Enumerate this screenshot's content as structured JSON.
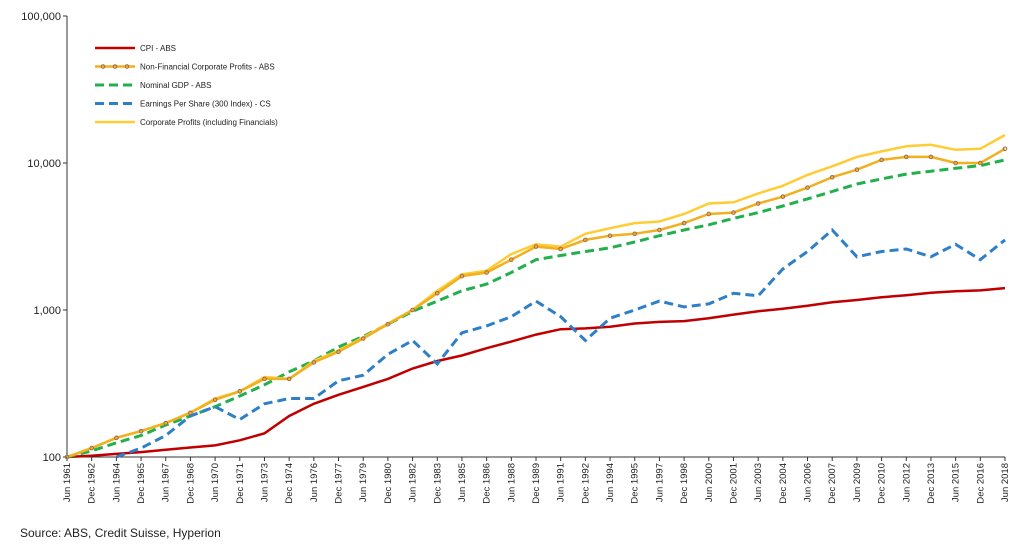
{
  "chart_data": {
    "type": "line",
    "log_scale": true,
    "grid": false,
    "legend_position": "top-left",
    "source": "Source: ABS, Credit Suisse, Hyperion",
    "categories": [
      "Jun 1961",
      "Dec 1962",
      "Jun 1964",
      "Dec 1965",
      "Jun 1967",
      "Dec 1968",
      "Jun 1970",
      "Dec 1971",
      "Jun 1973",
      "Dec 1974",
      "Jun 1976",
      "Dec 1977",
      "Jun 1979",
      "Dec 1980",
      "Jun 1982",
      "Dec 1983",
      "Jun 1985",
      "Dec 1986",
      "Jun 1988",
      "Dec 1989",
      "Jun 1991",
      "Dec 1992",
      "Jun 1994",
      "Dec 1995",
      "Jun 1997",
      "Dec 1998",
      "Jun 2000",
      "Dec 2001",
      "Jun 2003",
      "Dec 2004",
      "Jun 2006",
      "Dec 2007",
      "Jun 2009",
      "Dec 2010",
      "Jun 2012",
      "Dec 2013",
      "Jun 2015",
      "Dec 2016",
      "Jun 2018"
    ],
    "ylim": [
      100,
      100000
    ],
    "yticks": [
      {
        "value": 100,
        "label": "100"
      },
      {
        "value": 1000,
        "label": "1,000"
      },
      {
        "value": 10000,
        "label": "10,000"
      },
      {
        "value": 100000,
        "label": "100,000"
      }
    ],
    "series": [
      {
        "name": "CPI - ABS",
        "color": "#c00000",
        "dash": false,
        "values": [
          100,
          102,
          105,
          108,
          112,
          116,
          120,
          130,
          145,
          190,
          230,
          265,
          300,
          340,
          400,
          450,
          490,
          550,
          610,
          680,
          740,
          750,
          770,
          810,
          830,
          840,
          880,
          930,
          980,
          1020,
          1070,
          1130,
          1170,
          1220,
          1260,
          1310,
          1340,
          1360,
          1410
        ]
      },
      {
        "name": "Non-Financial Corporate Profits - ABS",
        "color": "#f0b020",
        "dash": false,
        "marker_color": "#9e6a4f",
        "values": [
          100,
          115,
          135,
          150,
          170,
          200,
          245,
          280,
          340,
          340,
          440,
          520,
          640,
          800,
          1000,
          1300,
          1700,
          1800,
          2200,
          2700,
          2600,
          3000,
          3200,
          3300,
          3500,
          3900,
          4500,
          4600,
          5300,
          5900,
          6800,
          8000,
          9000,
          10500,
          11000,
          11000,
          10000,
          10000,
          12500
        ]
      },
      {
        "name": "Nominal GDP - ABS",
        "color": "#22b04c",
        "dash": true,
        "values": [
          100,
          110,
          125,
          140,
          165,
          190,
          220,
          260,
          310,
          380,
          450,
          560,
          660,
          800,
          980,
          1150,
          1350,
          1500,
          1800,
          2200,
          2350,
          2500,
          2650,
          2900,
          3200,
          3500,
          3800,
          4200,
          4600,
          5100,
          5700,
          6400,
          7200,
          7800,
          8400,
          8800,
          9200,
          9600,
          10500
        ]
      },
      {
        "name": "Earnings Per Share (300 Index) - CS",
        "color": "#2f7fc8",
        "dash": true,
        "values": [
          null,
          null,
          100,
          115,
          140,
          190,
          220,
          180,
          230,
          250,
          250,
          330,
          360,
          500,
          620,
          430,
          700,
          780,
          900,
          1150,
          900,
          620,
          880,
          1000,
          1150,
          1050,
          1100,
          1300,
          1250,
          1900,
          2500,
          3500,
          2300,
          2500,
          2600,
          2300,
          2800,
          2200,
          3000
        ]
      },
      {
        "name": "Corporate Profits (including Financials)",
        "color": "#ffcc33",
        "dash": false,
        "values": [
          100,
          115,
          135,
          150,
          170,
          200,
          250,
          280,
          350,
          340,
          450,
          530,
          650,
          810,
          1000,
          1350,
          1750,
          1850,
          2400,
          2800,
          2700,
          3300,
          3600,
          3900,
          4000,
          4500,
          5300,
          5400,
          6200,
          7000,
          8300,
          9500,
          11000,
          12000,
          13000,
          13300,
          12300,
          12500,
          15500
        ]
      }
    ]
  }
}
